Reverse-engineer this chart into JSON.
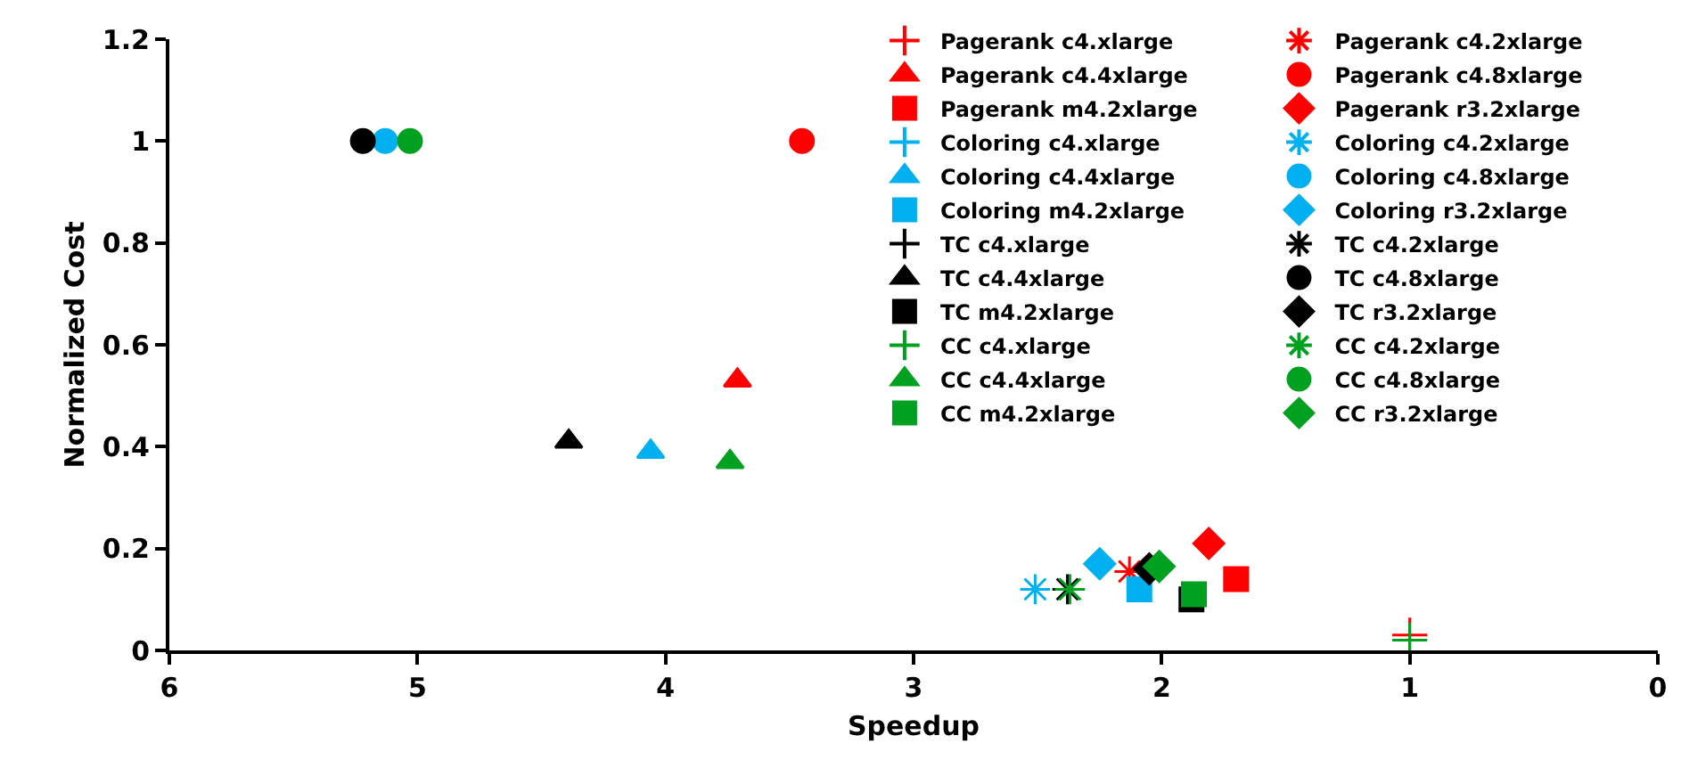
{
  "chart_data": {
    "type": "scatter",
    "xlabel": "Speedup",
    "ylabel": "Normalized Cost",
    "xlim": [
      6,
      0
    ],
    "xticks": [
      6,
      5,
      4,
      3,
      2,
      1,
      0
    ],
    "ylim": [
      0,
      1.2
    ],
    "yticks": [
      0,
      0.2,
      0.4,
      0.6,
      0.8,
      1,
      1.2
    ],
    "legend": "top right",
    "series": [
      {
        "name": "Pagerank c4.xlarge",
        "color": "#ff0000",
        "marker": "cross",
        "x": [
          1.0
        ],
        "values": [
          0.03
        ]
      },
      {
        "name": "Pagerank c4.2xlarge",
        "color": "#ff0000",
        "x": [
          2.13
        ],
        "values": [
          0.155
        ]
      },
      {
        "name": "Pagerank c4.4xlarge",
        "color": "#ff0000",
        "marker": "triangle",
        "x": [
          3.71
        ],
        "values": [
          0.53
        ]
      },
      {
        "name": "Pagerank c4.8xlarge",
        "color": "#ff0000",
        "marker": "circle",
        "x": [
          3.45
        ],
        "values": [
          1.0
        ]
      },
      {
        "name": "Pagerank m4.2xlarge",
        "color": "#ff0000",
        "marker": "square",
        "x": [
          1.7
        ],
        "values": [
          0.14
        ]
      },
      {
        "name": "Pagerank r3.2xlarge",
        "color": "#ff0000",
        "marker": "diamond",
        "x": [
          1.81
        ],
        "values": [
          0.21
        ]
      },
      {
        "name": "Coloring c4.xlarge",
        "color": "#00b0f0",
        "marker": "cross",
        "values": [
          null
        ]
      },
      {
        "name": "Coloring c4.2xlarge",
        "color": "#00b0f0",
        "x": [
          2.51
        ],
        "values": [
          0.12
        ]
      },
      {
        "name": "Coloring c4.4xlarge",
        "color": "#00b0f0",
        "marker": "triangle",
        "x": [
          4.06
        ],
        "values": [
          0.39
        ]
      },
      {
        "name": "Coloring c4.8xlarge",
        "color": "#00b0f0",
        "marker": "circle",
        "x": [
          5.13
        ],
        "values": [
          1.0
        ]
      },
      {
        "name": "Coloring m4.2xlarge",
        "color": "#00b0f0",
        "marker": "square",
        "x": [
          2.09
        ],
        "values": [
          0.12
        ]
      },
      {
        "name": "Coloring r3.2xlarge",
        "color": "#00b0f0",
        "marker": "diamond",
        "x": [
          2.25
        ],
        "values": [
          0.17
        ]
      },
      {
        "name": "TC c4.xlarge",
        "color": "#000000",
        "marker": "cross",
        "values": [
          null
        ]
      },
      {
        "name": "TC c4.2xlarge",
        "color": "#000000",
        "x": [
          2.38
        ],
        "values": [
          0.12
        ]
      },
      {
        "name": "TC c4.4xlarge",
        "color": "#000000",
        "marker": "triangle",
        "x": [
          4.39
        ],
        "values": [
          0.41
        ]
      },
      {
        "name": "TC c4.8xlarge",
        "color": "#000000",
        "marker": "circle",
        "x": [
          5.22
        ],
        "values": [
          1.0
        ]
      },
      {
        "name": "TC m4.2xlarge",
        "color": "#000000",
        "marker": "square",
        "x": [
          1.88
        ],
        "values": [
          0.1
        ]
      },
      {
        "name": "TC r3.2xlarge",
        "color": "#000000",
        "marker": "diamond",
        "x": [
          2.05
        ],
        "values": [
          0.16
        ]
      },
      {
        "name": "CC c4.xlarge",
        "color": "#00a020",
        "marker": "cross",
        "x": [
          1.0
        ],
        "values": [
          0.02
        ]
      },
      {
        "name": "CC c4.2xlarge",
        "color": "#00a020",
        "x": [
          2.37
        ],
        "values": [
          0.12
        ]
      },
      {
        "name": "CC c4.4xlarge",
        "color": "#00a020",
        "marker": "triangle",
        "x": [
          3.74
        ],
        "values": [
          0.37
        ]
      },
      {
        "name": "CC c4.8xlarge",
        "color": "#00a020",
        "marker": "circle",
        "x": [
          5.03
        ],
        "values": [
          1.0
        ]
      },
      {
        "name": "CC m4.2xlarge",
        "color": "#00a020",
        "marker": "square",
        "x": [
          1.87
        ],
        "values": [
          0.11
        ]
      },
      {
        "name": "CC r3.2xlarge",
        "color": "#00a020",
        "marker": "diamond",
        "x": [
          2.01
        ],
        "values": [
          0.165
        ]
      }
    ]
  }
}
